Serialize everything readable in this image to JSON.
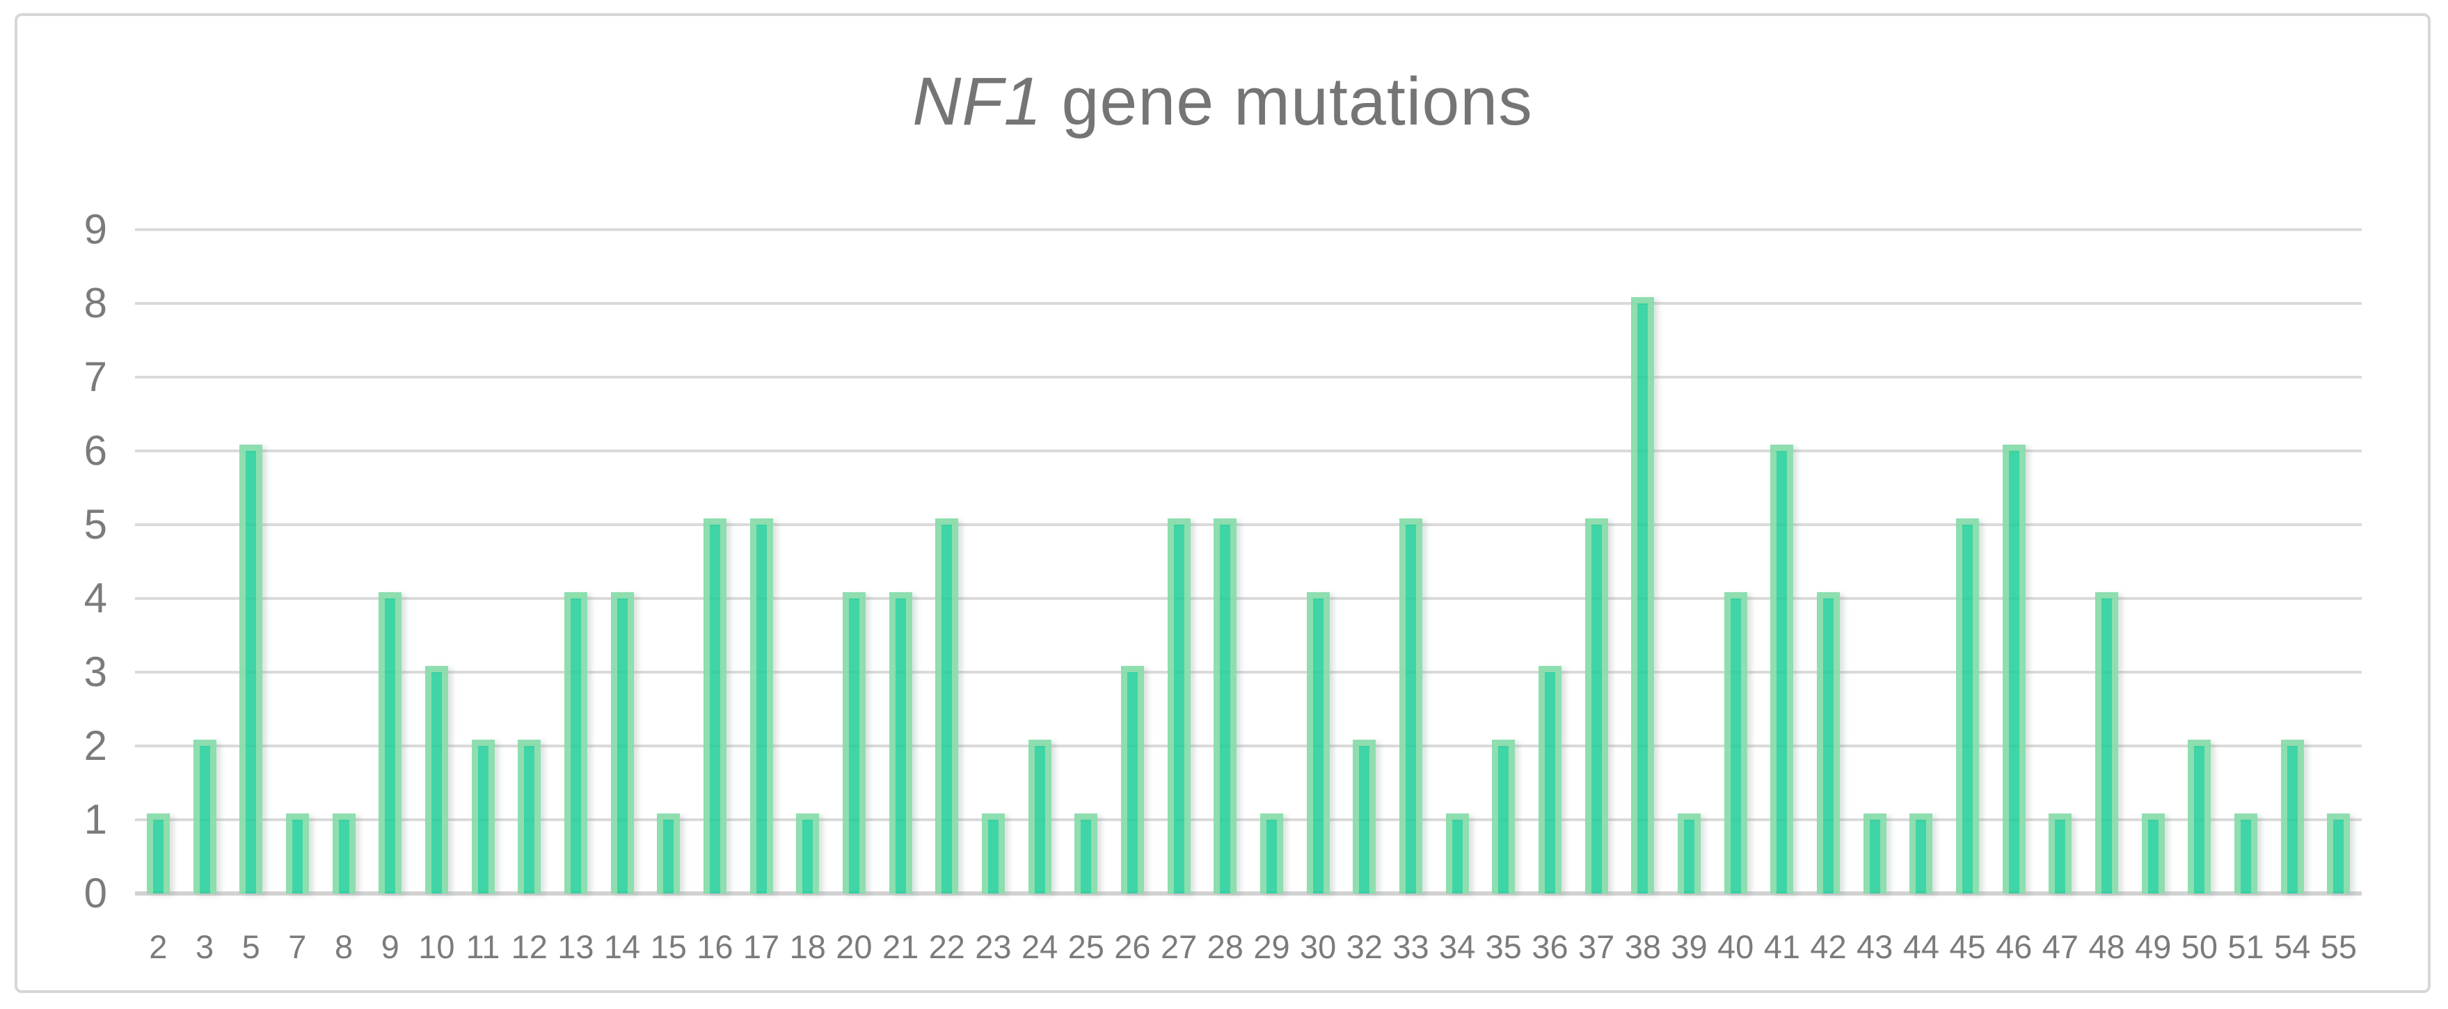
{
  "chart_data": {
    "type": "bar",
    "title": "NF1 gene mutations",
    "title_parts": {
      "italic": "NF1",
      "rest": " gene mutations"
    },
    "categories": [
      "2",
      "3",
      "5",
      "7",
      "8",
      "9",
      "10",
      "11",
      "12",
      "13",
      "14",
      "15",
      "16",
      "17",
      "18",
      "20",
      "21",
      "22",
      "23",
      "24",
      "25",
      "26",
      "27",
      "28",
      "29",
      "30",
      "32",
      "33",
      "34",
      "35",
      "36",
      "37",
      "38",
      "39",
      "40",
      "41",
      "42",
      "43",
      "44",
      "45",
      "46",
      "47",
      "48",
      "49",
      "50",
      "51",
      "54",
      "55"
    ],
    "values": [
      1,
      2,
      6,
      1,
      1,
      4,
      3,
      2,
      2,
      4,
      4,
      1,
      5,
      5,
      1,
      4,
      4,
      5,
      1,
      2,
      1,
      3,
      5,
      5,
      1,
      4,
      2,
      5,
      1,
      2,
      3,
      5,
      8,
      1,
      4,
      6,
      4,
      1,
      1,
      5,
      6,
      1,
      4,
      1,
      2,
      1,
      2,
      1
    ],
    "xlabel": "",
    "ylabel": "",
    "ylim": [
      0,
      9
    ],
    "yticks": [
      0,
      1,
      2,
      3,
      4,
      5,
      6,
      7,
      8,
      9
    ],
    "grid": true,
    "legend": "none",
    "colors": {
      "bar_fill": "#3ed6a3",
      "bar_border": "#d7edd2",
      "gridline": "#dadada",
      "axis_line": "#d2d2d2",
      "tick_text": "#7b7b7b",
      "title_text": "#757575",
      "card_border": "#d6d6d6",
      "background": "#ffffff"
    }
  }
}
